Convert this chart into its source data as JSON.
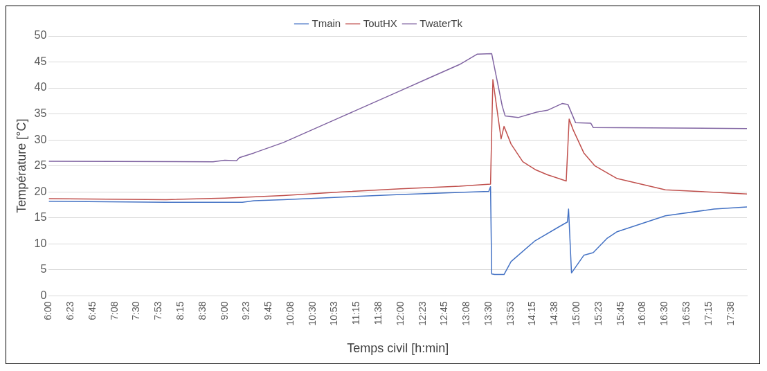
{
  "chart_data": {
    "type": "line",
    "xlabel": "Temps civil [h:min]",
    "ylabel": "Température [°C]",
    "legend": "top",
    "grid": "y",
    "marker": "none",
    "line_style": "solid",
    "xlim": [
      6,
      17.9
    ],
    "ylim": [
      0,
      50
    ],
    "yticks": [
      0,
      5,
      10,
      15,
      20,
      25,
      30,
      35,
      40,
      45,
      50
    ],
    "xticks": [
      {
        "value": 6,
        "label": "6:00"
      },
      {
        "value": 6.375,
        "label": "6:23"
      },
      {
        "value": 6.75,
        "label": "6:45"
      },
      {
        "value": 7.125,
        "label": "7:08"
      },
      {
        "value": 7.5,
        "label": "7:30"
      },
      {
        "value": 7.875,
        "label": "7:53"
      },
      {
        "value": 8.25,
        "label": "8:15"
      },
      {
        "value": 8.625,
        "label": "8:38"
      },
      {
        "value": 9,
        "label": "9:00"
      },
      {
        "value": 9.375,
        "label": "9:23"
      },
      {
        "value": 9.75,
        "label": "9:45"
      },
      {
        "value": 10.125,
        "label": "10:08"
      },
      {
        "value": 10.5,
        "label": "10:30"
      },
      {
        "value": 10.875,
        "label": "10:53"
      },
      {
        "value": 11.25,
        "label": "11:15"
      },
      {
        "value": 11.625,
        "label": "11:38"
      },
      {
        "value": 12,
        "label": "12:00"
      },
      {
        "value": 12.375,
        "label": "12:23"
      },
      {
        "value": 12.75,
        "label": "12:45"
      },
      {
        "value": 13.125,
        "label": "13:08"
      },
      {
        "value": 13.5,
        "label": "13:30"
      },
      {
        "value": 13.875,
        "label": "13:53"
      },
      {
        "value": 14.25,
        "label": "14:15"
      },
      {
        "value": 14.625,
        "label": "14:38"
      },
      {
        "value": 15,
        "label": "15:00"
      },
      {
        "value": 15.375,
        "label": "15:23"
      },
      {
        "value": 15.75,
        "label": "15:45"
      },
      {
        "value": 16.125,
        "label": "16:08"
      },
      {
        "value": 16.5,
        "label": "16:30"
      },
      {
        "value": 16.875,
        "label": "16:53"
      },
      {
        "value": 17.25,
        "label": "17:15"
      },
      {
        "value": 17.625,
        "label": "17:38"
      }
    ],
    "series": [
      {
        "name": "Tmain",
        "color": "#4472c4",
        "x": [
          6,
          7,
          8,
          9,
          9.3,
          9.5,
          10,
          11,
          12,
          13,
          13.5,
          13.53,
          13.55,
          13.6,
          13.76,
          13.88,
          14.29,
          14.7,
          14.84,
          14.86,
          14.91,
          15.12,
          15.28,
          15.52,
          15.68,
          16.51,
          17.34,
          17.9
        ],
        "values": [
          18.2,
          18.1,
          18,
          18,
          18,
          18.3,
          18.5,
          19,
          19.5,
          19.9,
          20.1,
          21,
          4.2,
          4.1,
          4.1,
          6.6,
          10.6,
          13.3,
          14.2,
          16.7,
          4.4,
          7.8,
          8.3,
          11.1,
          12.3,
          15.4,
          16.7,
          17.1
        ]
      },
      {
        "name": "ToutHX",
        "color": "#c0504d",
        "x": [
          6,
          8,
          9,
          10,
          11,
          12,
          13,
          13.53,
          13.57,
          13.71,
          13.76,
          13.88,
          14.08,
          14.29,
          14.5,
          14.82,
          14.87,
          14.94,
          15.12,
          15.31,
          15.68,
          16.51,
          17.9
        ],
        "values": [
          18.7,
          18.5,
          18.8,
          19.3,
          20,
          20.6,
          21.1,
          21.5,
          41.6,
          30.2,
          32.6,
          29.2,
          25.8,
          24.3,
          23.3,
          22.1,
          34,
          31.9,
          27.5,
          25,
          22.6,
          20.4,
          19.6
        ]
      },
      {
        "name": "TwaterTk",
        "color": "#8064a2",
        "x": [
          6,
          8.8,
          9,
          9.2,
          9.25,
          9.5,
          10,
          10.5,
          11,
          11.5,
          12,
          12.5,
          13,
          13.3,
          13.55,
          13.73,
          13.78,
          14,
          14.3,
          14.5,
          14.75,
          14.85,
          14.98,
          15.24,
          15.28,
          17.9
        ],
        "values": [
          25.9,
          25.8,
          26.1,
          26,
          26.6,
          27.5,
          29.5,
          32,
          34.5,
          37,
          39.5,
          42,
          44.5,
          46.5,
          46.6,
          36.5,
          34.6,
          34.3,
          35.3,
          35.7,
          37,
          36.8,
          33.3,
          33.2,
          32.4,
          32.2
        ]
      }
    ]
  }
}
